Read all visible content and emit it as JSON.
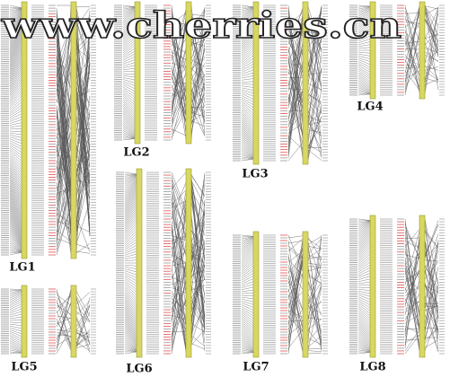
{
  "watermark": "www.cherries.cn",
  "groups": [
    {
      "label": "LG1"
    },
    {
      "label": "LG2"
    },
    {
      "label": "LG3"
    },
    {
      "label": "LG4"
    },
    {
      "label": "LG5"
    },
    {
      "label": "LG6"
    },
    {
      "label": "LG7"
    },
    {
      "label": "LG8"
    }
  ]
}
